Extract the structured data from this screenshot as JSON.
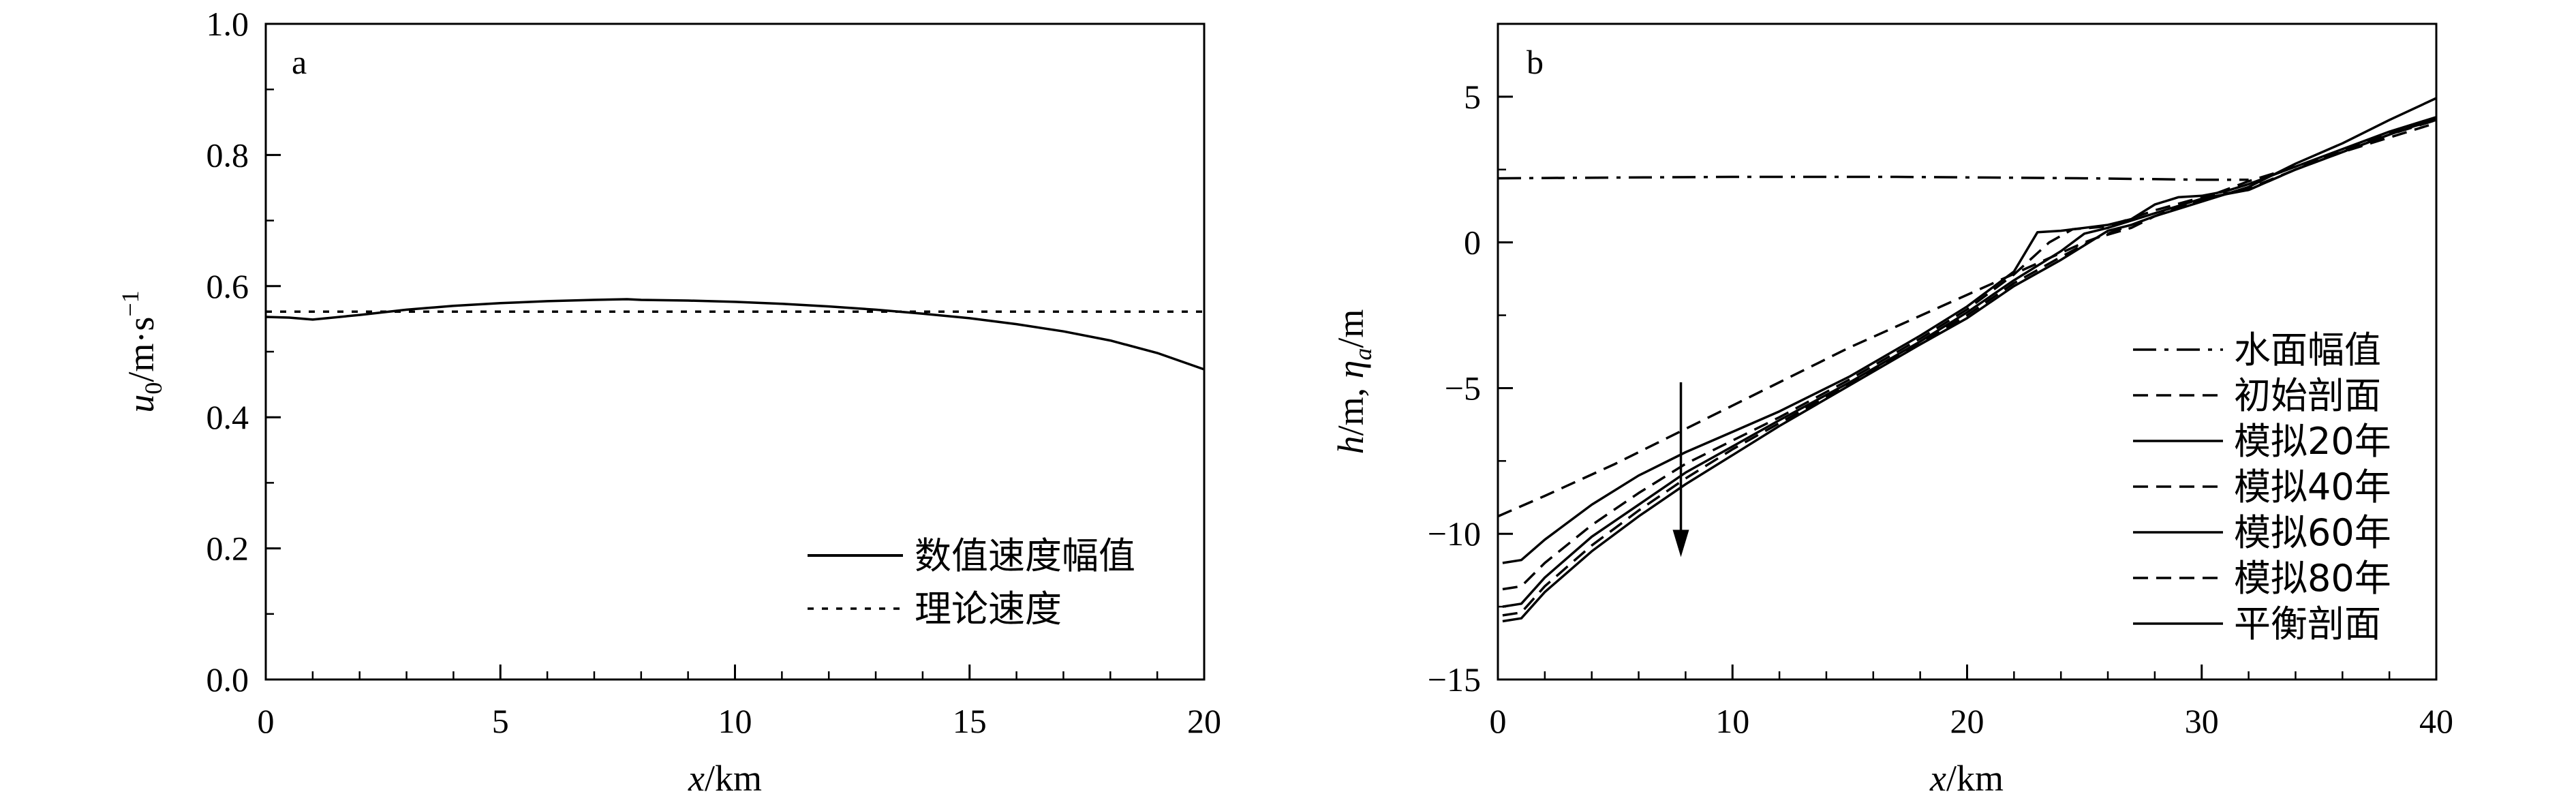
{
  "chart_data": [
    {
      "panel": "a",
      "type": "line",
      "xlabel": "x/km",
      "ylabel": "u0/m·s−1",
      "xlim": [
        0,
        20
      ],
      "ylim": [
        0,
        1.0
      ],
      "xticks": [
        "0",
        "5",
        "10",
        "15",
        "20"
      ],
      "yticks": [
        "0.0",
        "0.2",
        "0.4",
        "0.6",
        "0.8",
        "1.0"
      ],
      "legend_position": "bottom-right",
      "series": [
        {
          "name": "数值速度幅值",
          "style": "solid",
          "x": [
            0,
            0.5,
            1,
            2,
            3,
            4,
            5,
            6,
            7,
            7.7,
            8,
            9,
            10,
            11,
            12,
            13,
            14,
            15,
            16,
            17,
            18,
            19,
            20
          ],
          "y": [
            0.553,
            0.552,
            0.549,
            0.556,
            0.564,
            0.57,
            0.574,
            0.577,
            0.579,
            0.58,
            0.579,
            0.578,
            0.576,
            0.573,
            0.569,
            0.564,
            0.558,
            0.551,
            0.542,
            0.531,
            0.517,
            0.498,
            0.473
          ]
        },
        {
          "name": "理论速度",
          "style": "dotted",
          "x": [
            0,
            20
          ],
          "y": [
            0.561,
            0.561
          ]
        }
      ]
    },
    {
      "panel": "b",
      "type": "line",
      "xlabel": "x/km",
      "ylabel": "h/m, ηa/m",
      "xlim": [
        0,
        40
      ],
      "ylim": [
        -15,
        7.5
      ],
      "xticks": [
        "0",
        "10",
        "20",
        "30",
        "40"
      ],
      "yticks": [
        "−15",
        "−10",
        "−5",
        "0",
        "5"
      ],
      "legend_position": "bottom-right",
      "annotation": "downward arrow at x≈7.8 km from y≈−4.8 m to y≈−10.8 m",
      "series": [
        {
          "name": "水面幅值",
          "style": "dashdot",
          "x": [
            0,
            10,
            17,
            25,
            30,
            32
          ],
          "y": [
            2.2,
            2.25,
            2.25,
            2.2,
            2.15,
            2.15
          ]
        },
        {
          "name": "初始剖面",
          "style": "dashed",
          "x": [
            0,
            2,
            5,
            8,
            10,
            15,
            20,
            25,
            28,
            32,
            36,
            40
          ],
          "y": [
            -9.4,
            -8.7,
            -7.6,
            -6.4,
            -5.6,
            -3.6,
            -1.8,
            0.0,
            0.9,
            2.1,
            3.1,
            4.1
          ]
        },
        {
          "name": "模拟20年",
          "style": "solid",
          "x": [
            0.2,
            1,
            2,
            4,
            6,
            8,
            10,
            12,
            15,
            18,
            20,
            22,
            23,
            24,
            25,
            26,
            27,
            28,
            29,
            30,
            31,
            32,
            34,
            36,
            38,
            40
          ],
          "y": [
            -11.0,
            -10.9,
            -10.2,
            -9.0,
            -8.0,
            -7.2,
            -6.5,
            -5.8,
            -4.6,
            -3.2,
            -2.2,
            -1.0,
            0.35,
            0.4,
            0.5,
            0.6,
            0.8,
            1.3,
            1.55,
            1.6,
            1.75,
            2.0,
            2.6,
            3.2,
            3.8,
            4.3
          ]
        },
        {
          "name": "模拟40年",
          "style": "dashed",
          "x": [
            0.2,
            1,
            2,
            4,
            6,
            8,
            10,
            12,
            15,
            18,
            20,
            22,
            23.5,
            24.5,
            26,
            28,
            30,
            32,
            34,
            36,
            38,
            40
          ],
          "y": [
            -11.9,
            -11.8,
            -11.0,
            -9.7,
            -8.6,
            -7.6,
            -6.8,
            -6.0,
            -4.7,
            -3.3,
            -2.3,
            -1.1,
            0.0,
            0.45,
            0.55,
            1.1,
            1.55,
            1.8,
            2.5,
            3.1,
            3.7,
            4.2
          ]
        },
        {
          "name": "模拟60年",
          "style": "solid",
          "x": [
            0.2,
            1,
            2,
            4,
            6,
            8,
            10,
            12,
            15,
            18,
            20,
            22,
            24,
            25,
            26,
            28,
            30,
            32,
            34,
            36,
            38,
            40
          ],
          "y": [
            -12.5,
            -12.4,
            -11.5,
            -10.1,
            -9.0,
            -7.9,
            -7.0,
            -6.1,
            -4.8,
            -3.4,
            -2.4,
            -1.3,
            -0.3,
            0.3,
            0.5,
            1.0,
            1.5,
            1.8,
            2.5,
            3.1,
            3.7,
            4.25
          ]
        },
        {
          "name": "模拟80年",
          "style": "dashed",
          "x": [
            0.2,
            1,
            2,
            4,
            6,
            8,
            10,
            12,
            15,
            18,
            20,
            22,
            24,
            25.5,
            27,
            28,
            30,
            32,
            34,
            36,
            38,
            40
          ],
          "y": [
            -12.8,
            -12.7,
            -11.8,
            -10.4,
            -9.2,
            -8.1,
            -7.1,
            -6.2,
            -4.85,
            -3.45,
            -2.5,
            -1.4,
            -0.5,
            0.15,
            0.5,
            0.9,
            1.45,
            1.85,
            2.5,
            3.15,
            3.75,
            4.2
          ]
        },
        {
          "name": "平衡剖面",
          "style": "solid",
          "x": [
            0.2,
            1,
            2,
            4,
            6,
            8,
            10,
            12,
            15,
            18,
            20,
            22,
            24,
            26,
            27,
            28,
            30,
            32,
            34,
            36,
            38,
            40
          ],
          "y": [
            -13.0,
            -12.9,
            -12.0,
            -10.6,
            -9.4,
            -8.3,
            -7.3,
            -6.3,
            -4.9,
            -3.5,
            -2.6,
            -1.5,
            -0.6,
            0.4,
            0.6,
            0.9,
            1.4,
            1.9,
            2.7,
            3.4,
            4.2,
            4.95
          ]
        }
      ]
    }
  ]
}
